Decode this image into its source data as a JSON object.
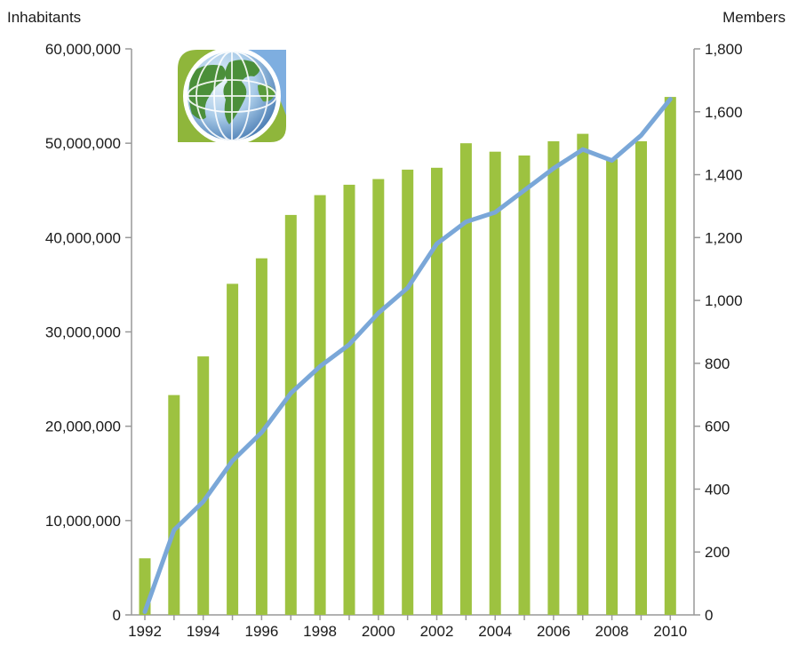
{
  "chart_data": {
    "type": "bar",
    "title": "",
    "x": [
      "1992",
      "1993",
      "1994",
      "1995",
      "1996",
      "1997",
      "1998",
      "1999",
      "2000",
      "2001",
      "2002",
      "2003",
      "2004",
      "2005",
      "2006",
      "2007",
      "2008",
      "2009",
      "2010"
    ],
    "x_tick_labels": [
      "1992",
      "1994",
      "1996",
      "1998",
      "2000",
      "2002",
      "2004",
      "2006",
      "2008",
      "2010"
    ],
    "ylabel_left": "Inhabitants",
    "ylabel_right": "Members",
    "ylim_left": [
      0,
      60000000
    ],
    "ylim_right": [
      0,
      1800
    ],
    "y_ticks_left": [
      "0",
      "10,000,000",
      "20,000,000",
      "30,000,000",
      "40,000,000",
      "50,000,000",
      "60,000,000"
    ],
    "y_ticks_right": [
      "0",
      "200",
      "400",
      "600",
      "800",
      "1,000",
      "1,200",
      "1,400",
      "1,600",
      "1,800"
    ],
    "grid": false,
    "legend": "none",
    "series": [
      {
        "type": "bar",
        "axis": "left",
        "color": "#9dc240",
        "values": [
          6000000,
          23300000,
          27400000,
          35100000,
          37800000,
          42400000,
          44500000,
          45600000,
          46200000,
          47200000,
          47400000,
          50000000,
          49100000,
          48700000,
          50200000,
          51000000,
          48300000,
          50200000,
          54900000
        ]
      },
      {
        "type": "line",
        "axis": "right",
        "color": "#7aa7d8",
        "values": [
          10,
          270,
          360,
          490,
          580,
          705,
          790,
          860,
          960,
          1040,
          1180,
          1250,
          1280,
          1350,
          1420,
          1480,
          1445,
          1525,
          1640
        ]
      }
    ]
  },
  "decoration": {
    "icon": "globe-logo-icon"
  }
}
